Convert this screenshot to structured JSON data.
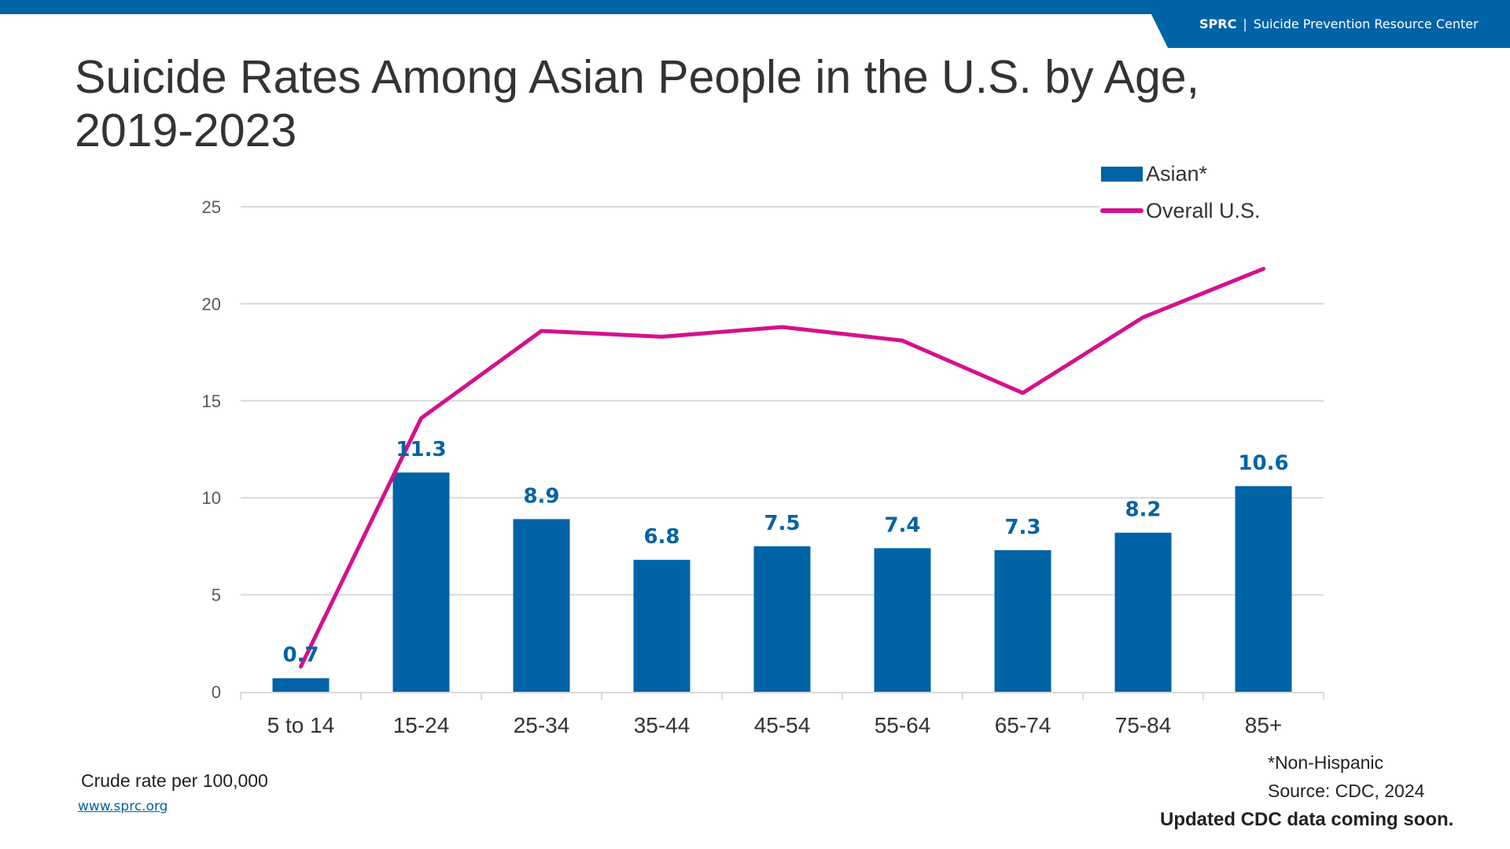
{
  "header": {
    "brand_abbr": "SPRC",
    "brand_sep": "|",
    "brand_name": "Suicide Prevention Resource Center",
    "brand_color": "#0063a6"
  },
  "title": "Suicide Rates Among Asian People in the U.S. by Age, 2019-2023",
  "chart_data": {
    "type": "bar",
    "title": "Suicide Rates Among Asian People in the U.S. by Age, 2019-2023",
    "xlabel": "",
    "ylabel": "Crude rate per 100,000",
    "ylim": [
      0,
      25
    ],
    "yticks": [
      "0",
      "5",
      "10",
      "15",
      "20",
      "25"
    ],
    "grid": true,
    "legend_position": "top-right",
    "categories": [
      "5 to 14",
      "15-24",
      "25-34",
      "35-44",
      "45-54",
      "55-64",
      "65-74",
      "75-84",
      "85+"
    ],
    "series": [
      {
        "name": "Asian*",
        "type": "bar",
        "color": "#0063a6",
        "values": [
          0.7,
          11.3,
          8.9,
          6.8,
          7.5,
          7.4,
          7.3,
          8.2,
          10.6
        ],
        "labels": [
          "0.7",
          "11.3",
          "8.9",
          "6.8",
          "7.5",
          "7.4",
          "7.3",
          "8.2",
          "10.6"
        ]
      },
      {
        "name": "Overall U.S.",
        "type": "line",
        "color": "#d4118d",
        "values": [
          1.3,
          14.1,
          18.6,
          18.3,
          18.8,
          18.1,
          15.4,
          19.3,
          21.8
        ]
      }
    ]
  },
  "footer": {
    "unit_note": "Crude rate per 100,000",
    "website": "www.sprc.org",
    "footnote": "*Non-Hispanic",
    "source": "Source: CDC, 2024",
    "update_note": "Updated CDC data coming soon."
  }
}
